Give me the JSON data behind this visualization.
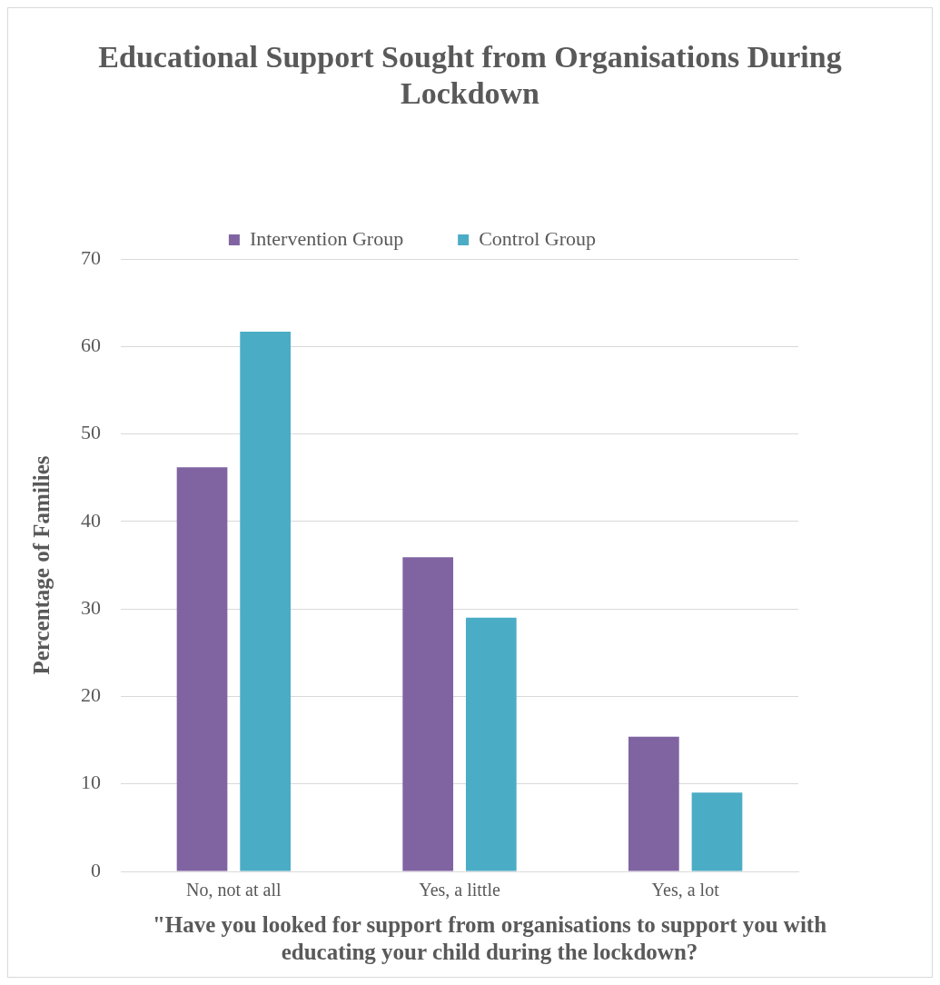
{
  "chart_data": {
    "type": "bar",
    "title": "Educational Support Sought from Organisations During Lockdown",
    "xlabel": "\"Have you looked for support from organisations to support you with educating your child during the lockdown?",
    "ylabel": "Percentage of Families",
    "categories": [
      "No, not at all",
      "Yes, a little",
      "Yes, a lot"
    ],
    "series": [
      {
        "name": "Intervention Group",
        "color": "#8064a2",
        "values": [
          46.2,
          35.9,
          15.4
        ]
      },
      {
        "name": "Control Group",
        "color": "#4bacc6",
        "values": [
          61.7,
          29.0,
          9.0
        ]
      }
    ],
    "ylim": [
      0,
      70
    ],
    "yticks": [
      0,
      10,
      20,
      30,
      40,
      50,
      60,
      70
    ],
    "grid": "y",
    "legend": "top"
  }
}
